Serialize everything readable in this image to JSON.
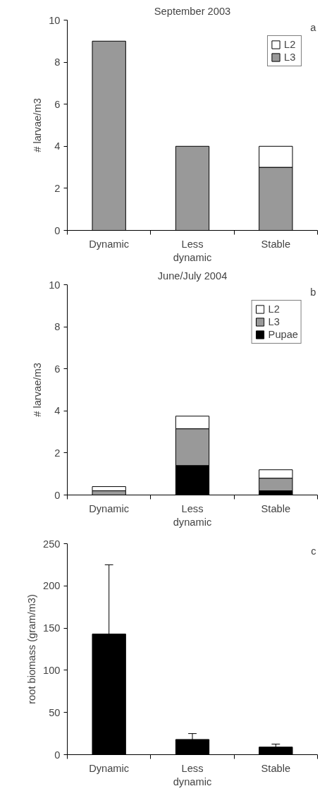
{
  "chart_data": [
    {
      "type": "bar",
      "title": "September 2003",
      "ylabel": "# larvae/m3",
      "annotations": [
        "a"
      ],
      "categories": [
        "Dynamic",
        "Less dynamic",
        "Stable"
      ],
      "stacked": true,
      "series": [
        {
          "name": "L3",
          "color": "#999999",
          "values": [
            9,
            4,
            3
          ]
        },
        {
          "name": "L2",
          "color": "#ffffff",
          "values": [
            null,
            null,
            1
          ]
        }
      ],
      "ylim": [
        0,
        10
      ],
      "yticks": [
        0,
        2,
        4,
        6,
        8,
        10
      ],
      "grid": false,
      "legend": "top right"
    },
    {
      "type": "bar",
      "title": "June/July 2004",
      "ylabel": "# larvae/m3",
      "annotations": [
        "b"
      ],
      "categories": [
        "Dynamic",
        "Less dynamic",
        "Stable"
      ],
      "stacked": true,
      "series": [
        {
          "name": "Pupae",
          "color": "#000000",
          "values": [
            null,
            1.4,
            0.2
          ]
        },
        {
          "name": "L3",
          "color": "#999999",
          "values": [
            0.2,
            1.75,
            0.6
          ]
        },
        {
          "name": "L2",
          "color": "#ffffff",
          "values": [
            0.2,
            0.6,
            0.4
          ]
        }
      ],
      "ylim": [
        0,
        10
      ],
      "yticks": [
        0,
        2,
        4,
        6,
        8,
        10
      ],
      "grid": false,
      "legend": "top right"
    },
    {
      "type": "bar",
      "ylabel": "root biomass (gram/m3)",
      "annotations": [
        "c"
      ],
      "categories": [
        "Dynamic",
        "Less dynamic",
        "Stable"
      ],
      "values": [
        143,
        18,
        9
      ],
      "color": "#000000",
      "errors": [
        [
          143,
          225
        ],
        [
          18,
          25
        ],
        [
          9,
          12.5
        ]
      ],
      "ylim": [
        0,
        250
      ],
      "yticks": [
        0,
        50,
        100,
        150,
        200,
        250
      ],
      "grid": false,
      "legend": false
    }
  ]
}
